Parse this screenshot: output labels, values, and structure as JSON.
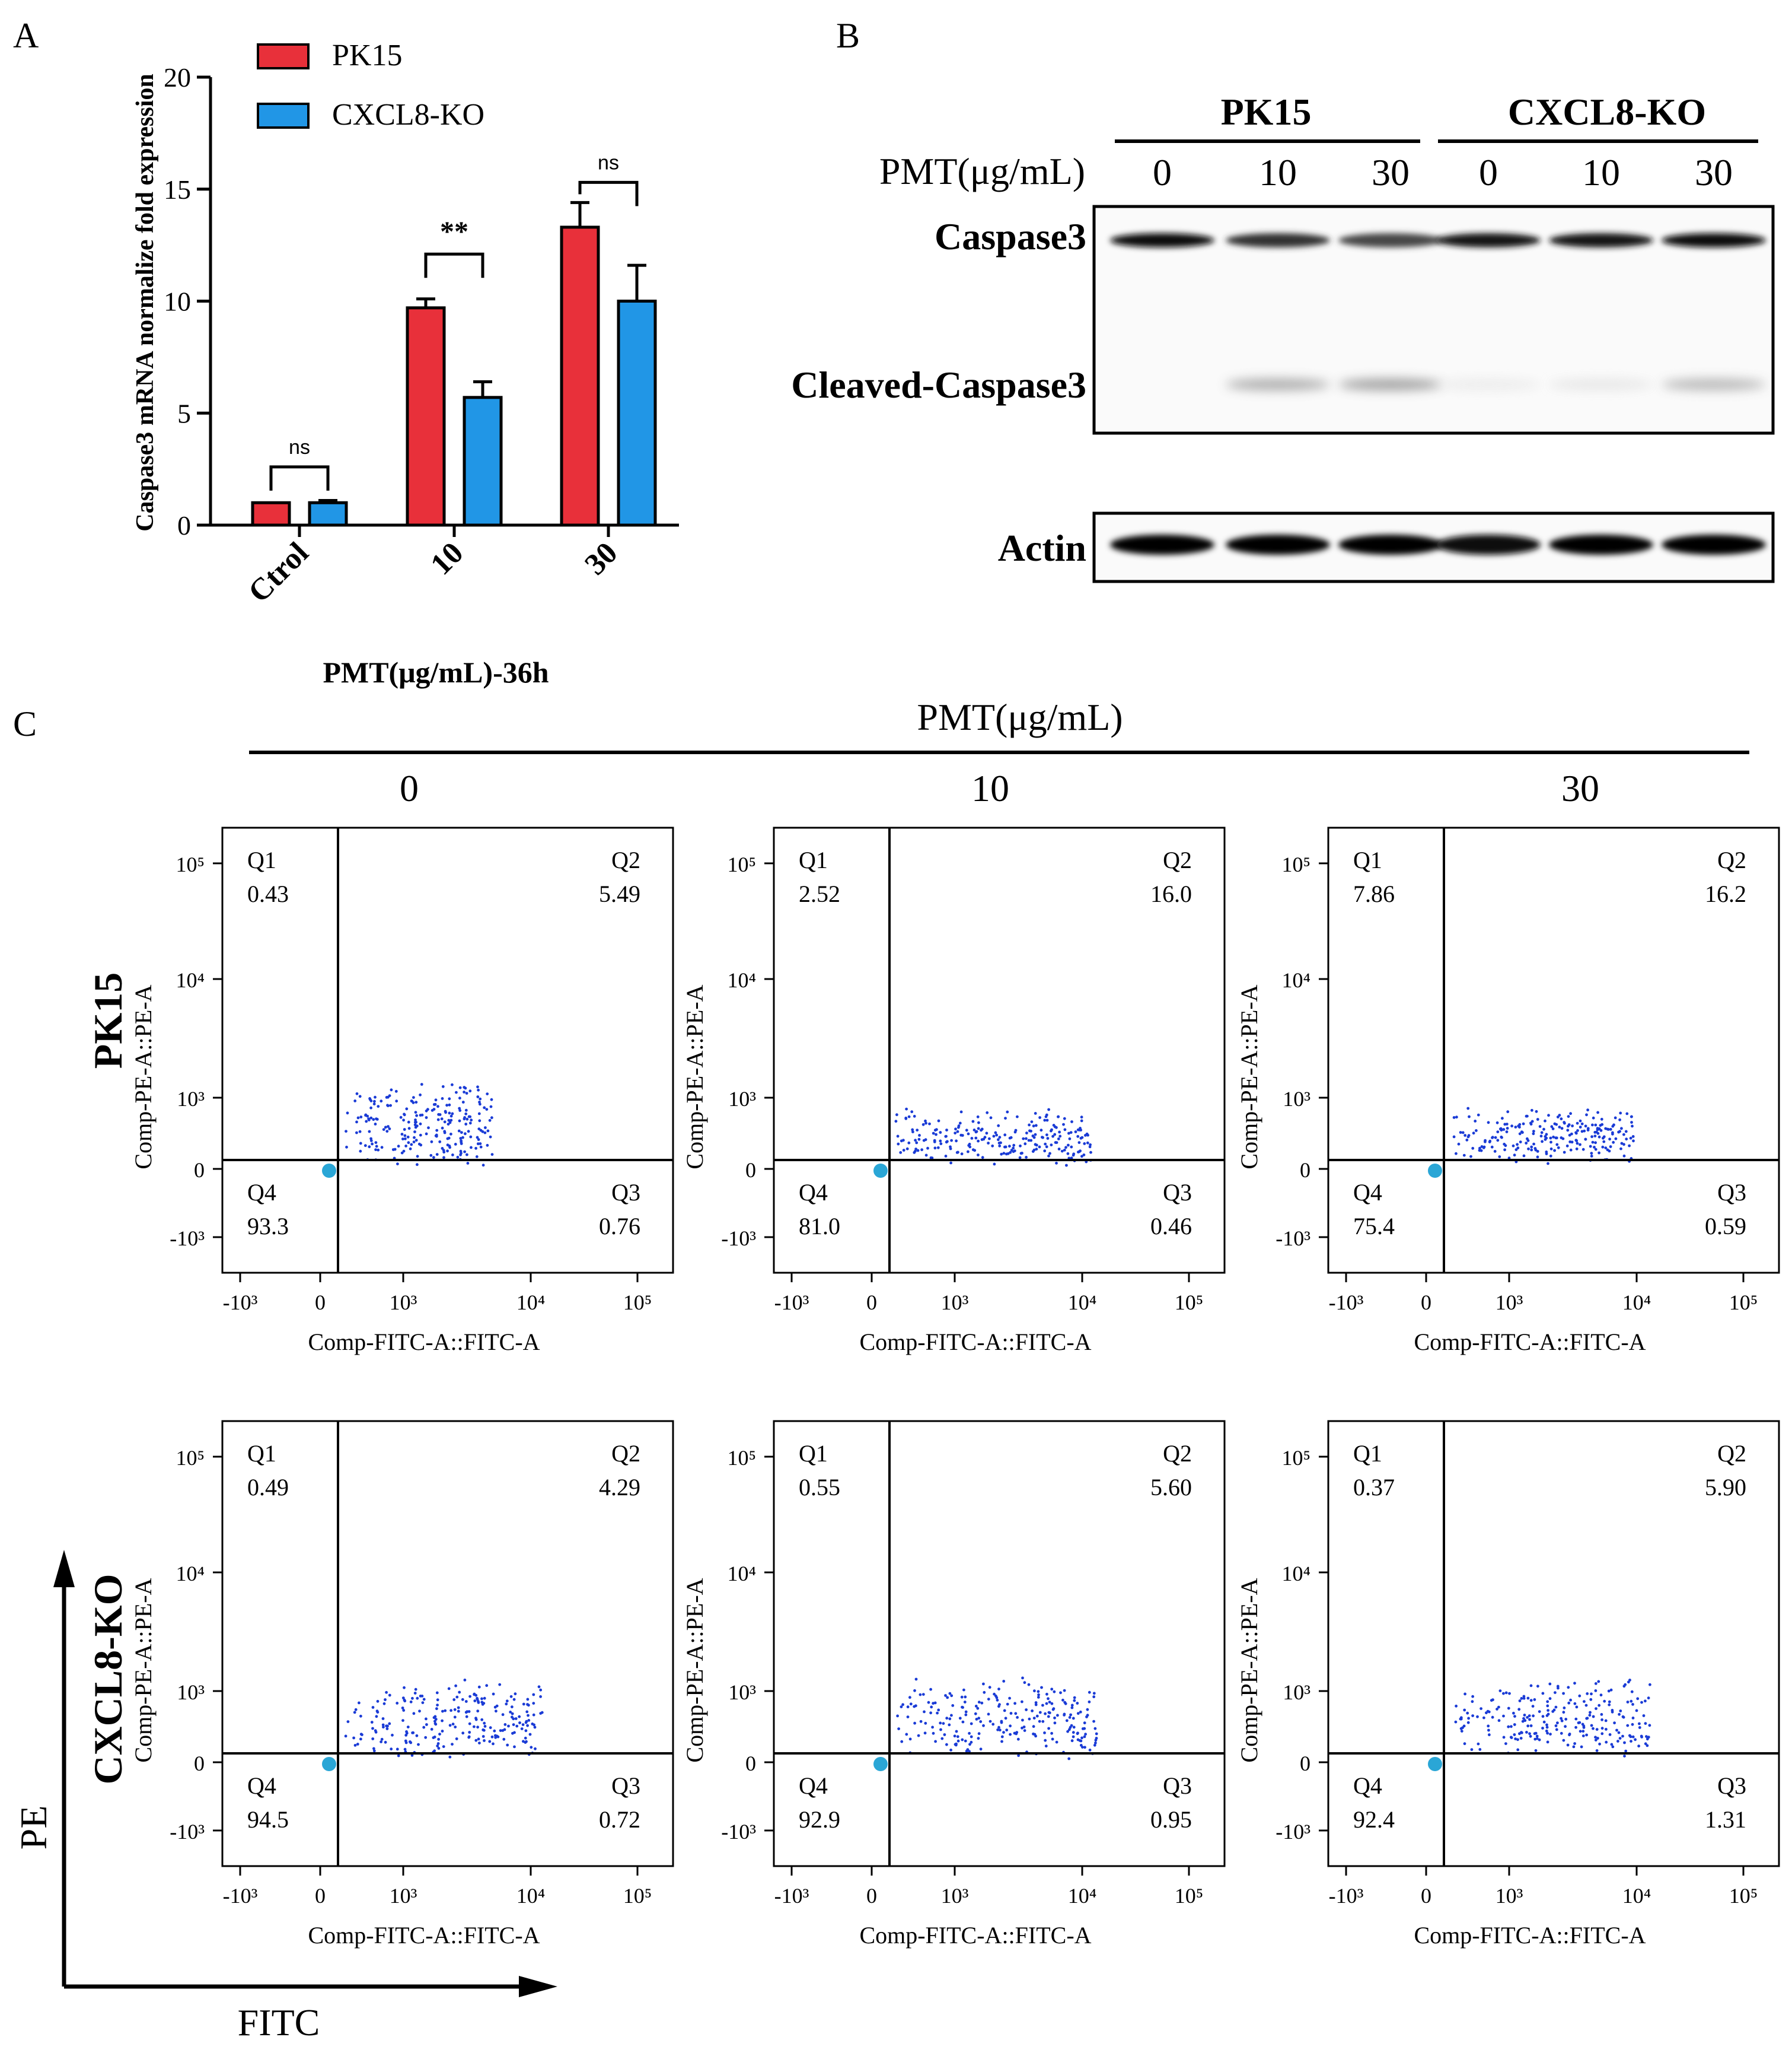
{
  "panel_labels": {
    "a": "A",
    "b": "B",
    "c": "C"
  },
  "colors": {
    "pk15": "#e8303a",
    "ko": "#2196e6",
    "dots": "#1a3bd6",
    "ink": "#000000"
  },
  "chart_data": [
    {
      "type": "bar",
      "ylabel": "Caspase3 mRNA normalize fold expression",
      "xlabel": "PMT(μg/mL)-36h",
      "categories": [
        "Ctrol",
        "10",
        "30"
      ],
      "ylim": [
        0,
        20
      ],
      "yticks": [
        "0",
        "5",
        "10",
        "15",
        "20"
      ],
      "series": [
        {
          "name": "PK15",
          "values": [
            1.0,
            9.7,
            13.3
          ],
          "errors": [
            0.0,
            0.4,
            1.1
          ]
        },
        {
          "name": "CXCL8-KO",
          "values": [
            1.0,
            5.7,
            10.0
          ],
          "errors": [
            0.1,
            0.7,
            1.6
          ]
        }
      ],
      "significance": [
        "ns",
        "**",
        "ns"
      ],
      "legend": "top-left"
    },
    {
      "type": "scatter",
      "note_axes": "log",
      "x_axis_label": "Comp-FITC-A::FITC-A",
      "y_axis_label": "Comp-PE-A::PE-A",
      "x_ticks": [
        "-10³",
        "0",
        "10³",
        "10⁴",
        "10⁵"
      ],
      "y_ticks": [
        "10⁵",
        "10⁴",
        "10³",
        "0",
        "-10³"
      ],
      "header": "PMT(μg/mL)",
      "columns": [
        "0",
        "10",
        "30"
      ],
      "rows": [
        "PK15",
        "CXCL8-KO"
      ],
      "panels": [
        {
          "row": "PK15",
          "dose": "0",
          "quadrants": {
            "Q1": "0.43",
            "Q2": "5.49",
            "Q3": "0.76",
            "Q4": "93.3"
          }
        },
        {
          "row": "PK15",
          "dose": "10",
          "quadrants": {
            "Q1": "2.52",
            "Q2": "16.0",
            "Q3": "0.46",
            "Q4": "81.0"
          }
        },
        {
          "row": "PK15",
          "dose": "30",
          "quadrants": {
            "Q1": "7.86",
            "Q2": "16.2",
            "Q3": "0.59",
            "Q4": "75.4"
          }
        },
        {
          "row": "CXCL8-KO",
          "dose": "0",
          "quadrants": {
            "Q1": "0.49",
            "Q2": "4.29",
            "Q3": "0.72",
            "Q4": "94.5"
          }
        },
        {
          "row": "CXCL8-KO",
          "dose": "10",
          "quadrants": {
            "Q1": "0.55",
            "Q2": "5.60",
            "Q3": "0.95",
            "Q4": "92.9"
          }
        },
        {
          "row": "CXCL8-KO",
          "dose": "30",
          "quadrants": {
            "Q1": "0.37",
            "Q2": "5.90",
            "Q3": "1.31",
            "Q4": "92.4"
          }
        }
      ],
      "axis_arrows": {
        "x": "FITC",
        "y": "PE"
      }
    }
  ],
  "western_blot": {
    "group_labels": [
      "PK15",
      "CXCL8-KO"
    ],
    "dose_title": "PMT(μg/mL)",
    "lanes": [
      "0",
      "10",
      "30",
      "0",
      "10",
      "30"
    ],
    "rows": [
      "Caspase3",
      "Cleaved-Caspase3",
      "Actin"
    ],
    "band_intensity": {
      "Caspase3": [
        0.95,
        0.8,
        0.72,
        0.9,
        0.9,
        0.95
      ],
      "Cleaved-Caspase3": [
        0.0,
        0.35,
        0.4,
        0.08,
        0.1,
        0.3
      ],
      "Actin": [
        1.0,
        1.0,
        1.0,
        0.95,
        1.0,
        1.0
      ]
    }
  }
}
